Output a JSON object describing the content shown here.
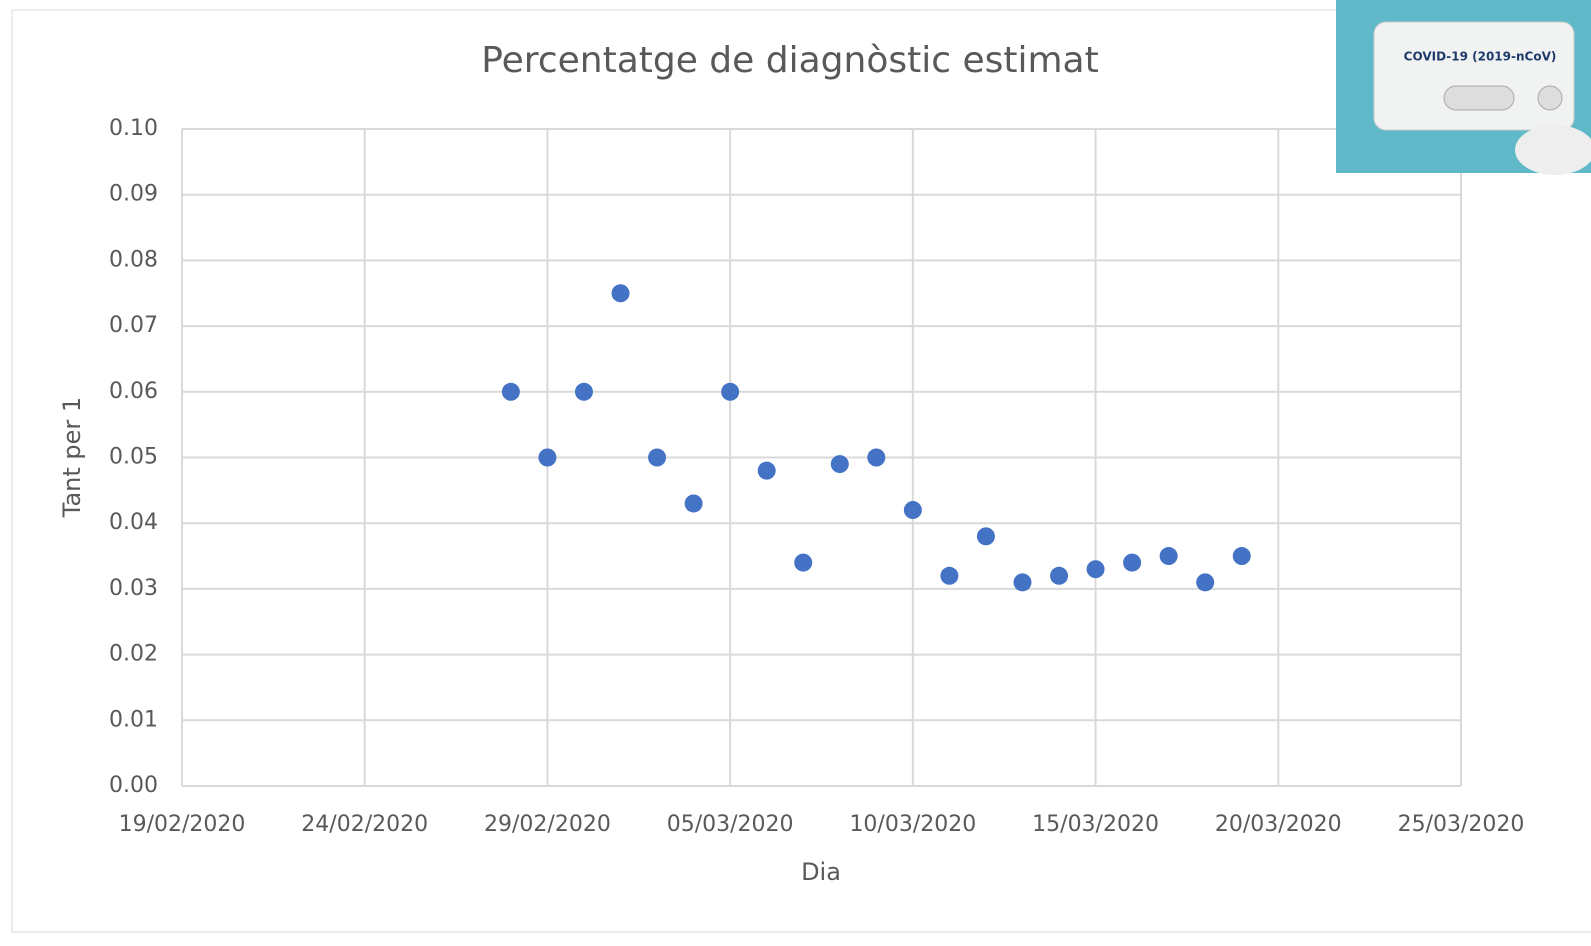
{
  "chart_data": {
    "type": "scatter",
    "title": "Percentatge de diagnòstic estimat",
    "x_label": "Dia",
    "y_label": "Tant per 1",
    "series": [
      {
        "name": "Percentatge de diagnòstic estimat",
        "color": "#4472c4",
        "x": [
          "2020-02-28",
          "2020-02-29",
          "2020-03-01",
          "2020-03-02",
          "2020-03-03",
          "2020-03-04",
          "2020-03-05",
          "2020-03-06",
          "2020-03-07",
          "2020-03-08",
          "2020-03-09",
          "2020-03-10",
          "2020-03-11",
          "2020-03-12",
          "2020-03-13",
          "2020-03-14",
          "2020-03-15",
          "2020-03-16",
          "2020-03-17",
          "2020-03-18",
          "2020-03-19"
        ],
        "values": [
          0.06,
          0.05,
          0.06,
          0.075,
          0.05,
          0.043,
          0.06,
          0.048,
          0.034,
          0.049,
          0.05,
          0.042,
          0.032,
          0.038,
          0.031,
          0.032,
          0.033,
          0.034,
          0.035,
          0.031,
          0.035
        ]
      }
    ],
    "xlim": [
      "2020-02-19",
      "2020-03-25"
    ],
    "xticks": [
      {
        "value": "2020-02-19",
        "label": "19/02/2020"
      },
      {
        "value": "2020-02-24",
        "label": "24/02/2020"
      },
      {
        "value": "2020-02-29",
        "label": "29/02/2020"
      },
      {
        "value": "2020-03-05",
        "label": "05/03/2020"
      },
      {
        "value": "2020-03-10",
        "label": "10/03/2020"
      },
      {
        "value": "2020-03-15",
        "label": "15/03/2020"
      },
      {
        "value": "2020-03-20",
        "label": "20/03/2020"
      },
      {
        "value": "2020-03-25",
        "label": "25/03/2020"
      }
    ],
    "ylim": [
      0,
      0.1
    ],
    "yticks": [
      {
        "value": 0,
        "label": "0.00"
      },
      0.01,
      0.02,
      0.03,
      0.04,
      0.05,
      0.06,
      0.07,
      0.08,
      0.09,
      {
        "value": 0.1,
        "label": "0.10"
      }
    ],
    "grid": true
  },
  "inset": {
    "label": "COVID-19 (2019-nCoV)"
  }
}
